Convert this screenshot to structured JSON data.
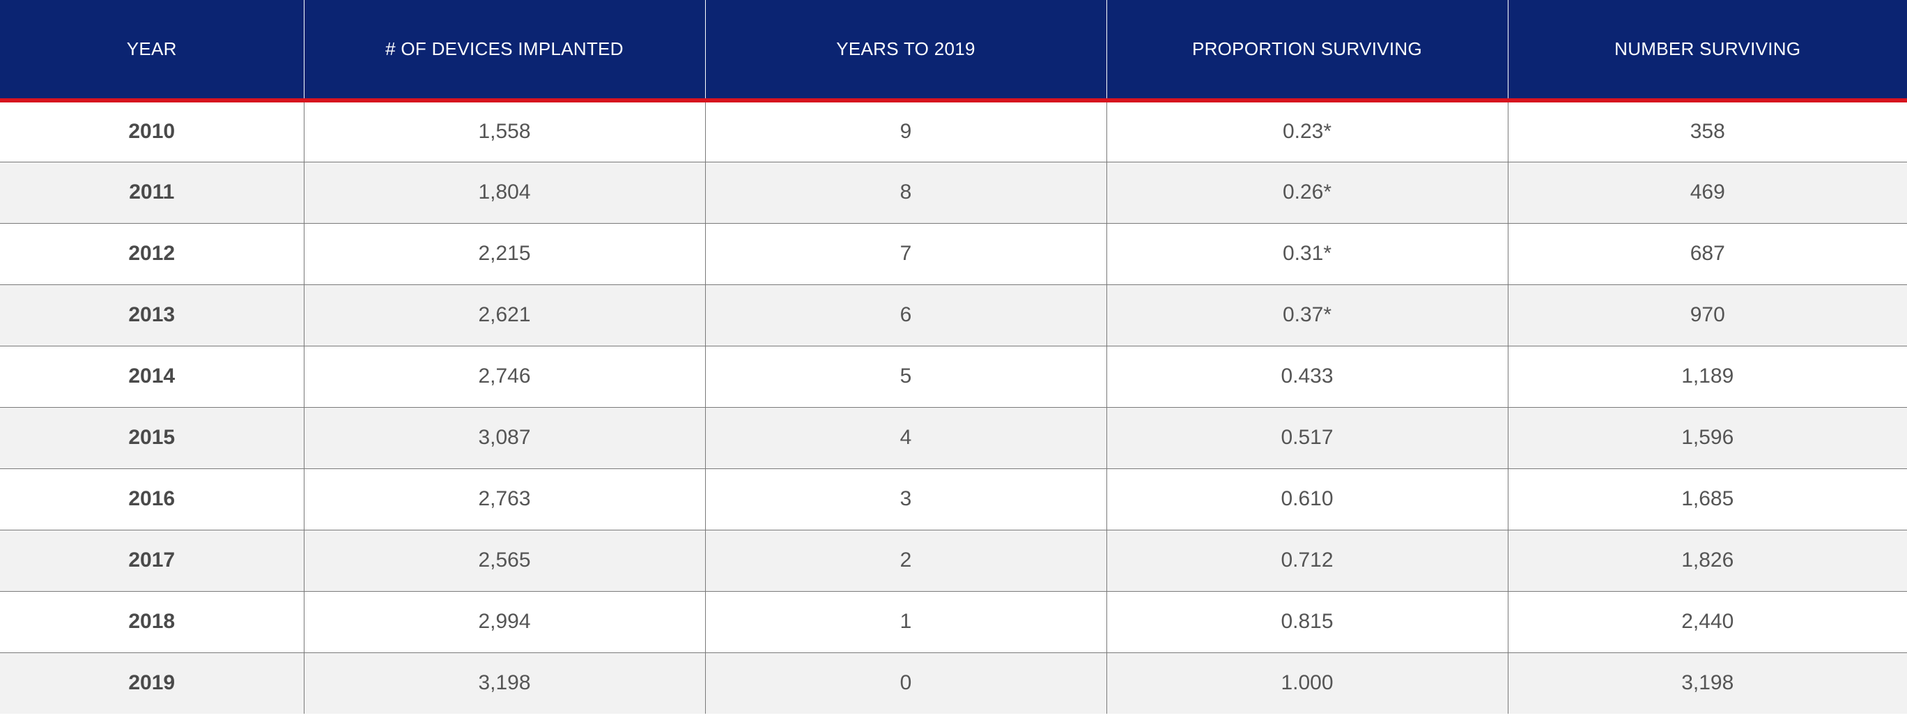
{
  "table": {
    "headers": [
      "YEAR",
      "# OF DEVICES IMPLANTED",
      "YEARS TO 2019",
      "PROPORTION SURVIVING",
      "NUMBER SURVIVING"
    ],
    "rows": [
      [
        "2010",
        "1,558",
        "9",
        "0.23*",
        "358"
      ],
      [
        "2011",
        "1,804",
        "8",
        "0.26*",
        "469"
      ],
      [
        "2012",
        "2,215",
        "7",
        "0.31*",
        "687"
      ],
      [
        "2013",
        "2,621",
        "6",
        "0.37*",
        "970"
      ],
      [
        "2014",
        "2,746",
        "5",
        "0.433",
        "1,189"
      ],
      [
        "2015",
        "3,087",
        "4",
        "0.517",
        "1,596"
      ],
      [
        "2016",
        "2,763",
        "3",
        "0.610",
        "1,685"
      ],
      [
        "2017",
        "2,565",
        "2",
        "0.712",
        "1,826"
      ],
      [
        "2018",
        "2,994",
        "1",
        "0.815",
        "2,440"
      ],
      [
        "2019",
        "3,198",
        "0",
        "1.000",
        "3,198"
      ]
    ]
  },
  "colors": {
    "header_background": "#0b2472",
    "header_rule": "#d7141f",
    "row_alt_background": "#f2f2f2"
  }
}
